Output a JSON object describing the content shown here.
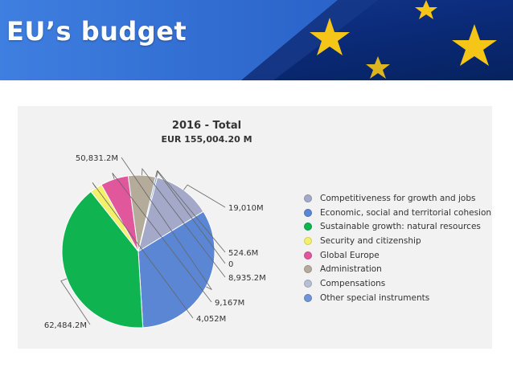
{
  "banner": {
    "title": "EU’s budget",
    "flag_colors": {
      "blue": "#0b3a9a",
      "star": "#f5c518"
    }
  },
  "chart_data": {
    "type": "pie",
    "title": "2016 - Total",
    "subtitle": "EUR 155,004.20 M",
    "series": [
      {
        "name": "Competitiveness for growth and jobs",
        "value": 19010,
        "label": "19,010M",
        "color": "#a4a9c9"
      },
      {
        "name": "Economic, social and territorial cohesion",
        "value": 50831.2,
        "label": "50,831.2M",
        "color": "#5b86d4"
      },
      {
        "name": "Sustainable growth: natural resources",
        "value": 62484.2,
        "label": "62,484.2M",
        "color": "#0fb450"
      },
      {
        "name": "Security and citizenship",
        "value": 4052,
        "label": "4,052M",
        "color": "#f4f06a"
      },
      {
        "name": "Global Europe",
        "value": 9167,
        "label": "9,167M",
        "color": "#e0579c"
      },
      {
        "name": "Administration",
        "value": 8935.2,
        "label": "8,935.2M",
        "color": "#b5ab9b"
      },
      {
        "name": "Compensations",
        "value": 0,
        "label": "0",
        "color": "#b7bfd3"
      },
      {
        "name": "Other special instruments",
        "value": 524.6,
        "label": "524.6M",
        "color": "#6f94d8"
      }
    ],
    "legend_placement": "right"
  }
}
